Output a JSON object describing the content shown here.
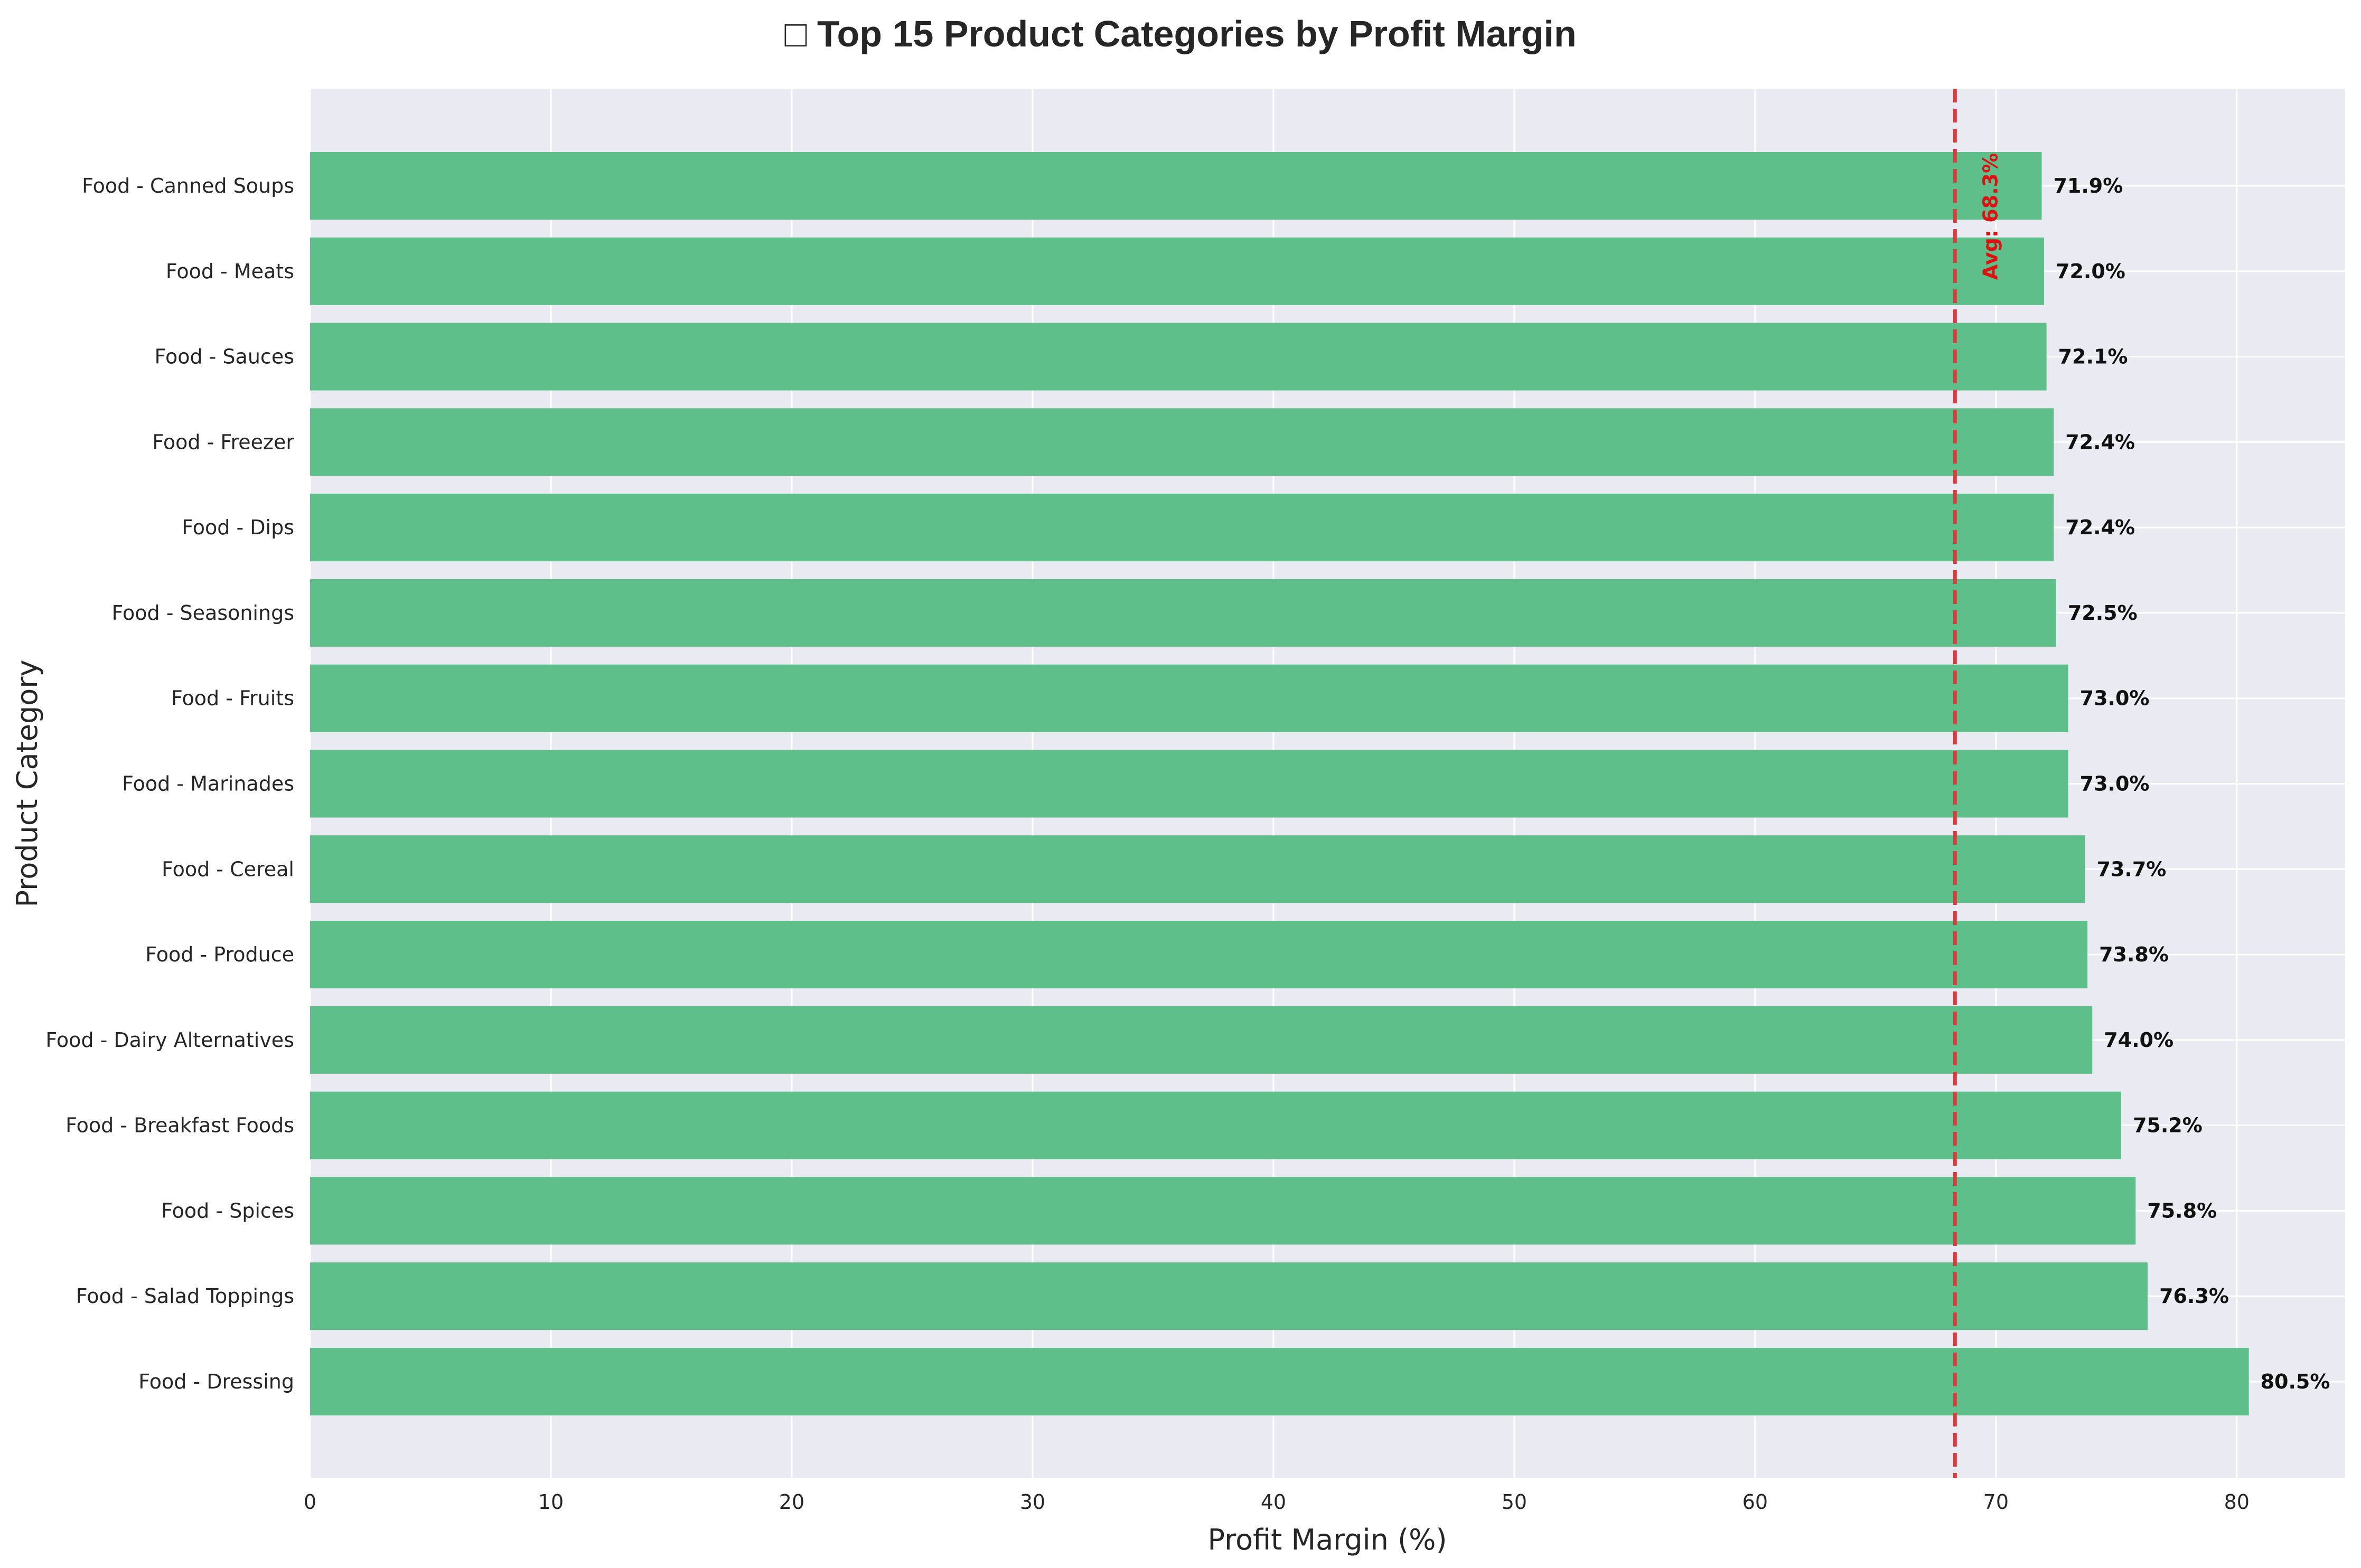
{
  "chart_data": {
    "type": "bar",
    "orientation": "horizontal",
    "title": "□ Top 15 Product Categories by Profit Margin",
    "xlabel": "Profit Margin (%)",
    "ylabel": "Product Category",
    "xlim": [
      0,
      84.5
    ],
    "x_ticks": [
      0,
      10,
      20,
      30,
      40,
      50,
      60,
      70,
      80
    ],
    "grid": true,
    "categories": [
      "Food - Canned Soups",
      "Food - Meats",
      "Food - Sauces",
      "Food - Freezer",
      "Food - Dips",
      "Food - Seasonings",
      "Food - Fruits",
      "Food - Marinades",
      "Food - Cereal",
      "Food - Produce",
      "Food - Dairy Alternatives",
      "Food - Breakfast Foods",
      "Food - Spices",
      "Food - Salad Toppings",
      "Food - Dressing"
    ],
    "values": [
      71.9,
      72.0,
      72.1,
      72.4,
      72.4,
      72.5,
      73.0,
      73.0,
      73.7,
      73.8,
      74.0,
      75.2,
      75.8,
      76.3,
      80.5
    ],
    "value_labels": [
      "71.9%",
      "72.0%",
      "72.1%",
      "72.4%",
      "72.4%",
      "72.5%",
      "73.0%",
      "73.0%",
      "73.7%",
      "73.8%",
      "74.0%",
      "75.2%",
      "75.8%",
      "76.3%",
      "80.5%"
    ],
    "average": {
      "value": 68.3,
      "label": "Avg: 68.3%"
    },
    "colors": {
      "bar": "#5fbf8b",
      "plot_bg": "#eaeaf2",
      "grid": "#ffffff",
      "avg_line": "#e03a3e",
      "avg_text": "#dd1111"
    }
  }
}
